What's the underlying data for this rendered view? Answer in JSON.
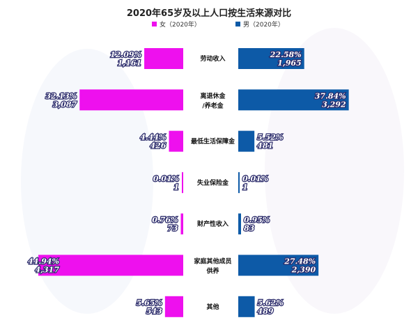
{
  "chart_data": {
    "type": "bar",
    "title": "2020年65岁及以上人口按生活来源对比",
    "legend_position": "top",
    "xlabel": "",
    "ylabel": "",
    "categories": [
      [
        "劳动收入"
      ],
      [
        "离退休金",
        "/养老金"
      ],
      [
        "最低生活保障金"
      ],
      [
        "失业保险金"
      ],
      [
        "财产性收入"
      ],
      [
        "家庭其他成员",
        "供养"
      ],
      [
        "其他"
      ]
    ],
    "series": [
      {
        "name": "女（2020年）",
        "color": "#ee10ee",
        "side": "left",
        "percent_labels": [
          "12.09%",
          "32.13%",
          "4.44%",
          "0.01%",
          "0.76%",
          "44.94%",
          "5.65%"
        ],
        "values": [
          1161,
          3087,
          426,
          1,
          73,
          4317,
          543
        ]
      },
      {
        "name": "男（2020年）",
        "color": "#0d5aa7",
        "side": "right",
        "percent_labels": [
          "22.58%",
          "37.84%",
          "5.52%",
          "0.01%",
          "0.95%",
          "27.48%",
          "5.62%"
        ],
        "values": [
          1965,
          3292,
          481,
          1,
          83,
          2390,
          489
        ]
      }
    ]
  }
}
